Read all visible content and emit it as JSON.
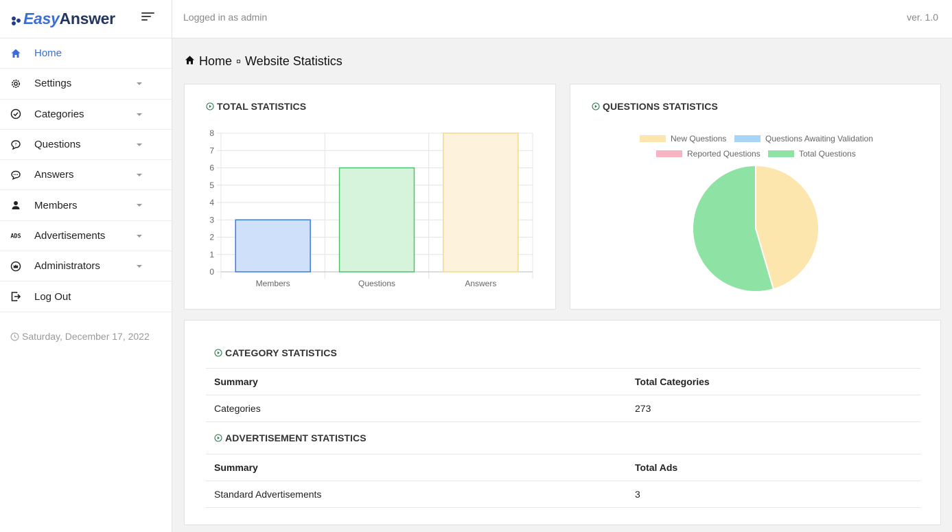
{
  "brand": {
    "part1": "Easy",
    "part2": "Answer"
  },
  "topbar": {
    "user_text": "Logged in as admin",
    "version": "ver. 1.0"
  },
  "sidebar": {
    "items": [
      {
        "label": "Home",
        "icon": "home-icon",
        "active": true
      },
      {
        "label": "Settings",
        "icon": "gear-icon"
      },
      {
        "label": "Categories",
        "icon": "check-circle-icon"
      },
      {
        "label": "Questions",
        "icon": "question-bubble-icon"
      },
      {
        "label": "Answers",
        "icon": "chat-bubble-icon"
      },
      {
        "label": "Members",
        "icon": "person-icon"
      },
      {
        "label": "Advertisements",
        "icon": "ads-icon"
      },
      {
        "label": "Administrators",
        "icon": "admin-badge-icon"
      },
      {
        "label": "Log Out",
        "icon": "logout-icon"
      }
    ],
    "date": "Saturday, December 17, 2022"
  },
  "breadcrumb": {
    "home": "Home",
    "current": "Website Statistics"
  },
  "total_stats": {
    "title": "TOTAL STATISTICS"
  },
  "questions_stats": {
    "title": "QUESTIONS STATISTICS"
  },
  "category_stats": {
    "title": "CATEGORY STATISTICS",
    "headers": [
      "Summary",
      "Total Categories"
    ],
    "rows": [
      [
        "Categories",
        "273"
      ]
    ]
  },
  "ad_stats": {
    "title": "ADVERTISEMENT STATISTICS",
    "headers": [
      "Summary",
      "Total Ads"
    ],
    "rows": [
      [
        "Standard Advertisements",
        "3"
      ]
    ]
  },
  "colors": {
    "accent": "#3a6fd8",
    "members_fill": "#cfe0fb",
    "members_stroke": "#3a7bd5",
    "questions_fill": "#d6f3dc",
    "questions_stroke": "#4cc26a",
    "answers_fill": "#fdf3dd",
    "answers_stroke": "#f5d88a",
    "pie_new": "#fde6ad",
    "pie_awaiting": "#a8d4f5",
    "pie_reported": "#f7b3c2",
    "pie_total": "#8ee3a4"
  },
  "chart_data": [
    {
      "type": "bar",
      "categories": [
        "Members",
        "Questions",
        "Answers"
      ],
      "values": [
        3,
        6,
        8
      ],
      "ylim": [
        0,
        8
      ],
      "yticks": [
        0,
        1,
        2,
        3,
        4,
        5,
        6,
        7,
        8
      ],
      "grid": true
    },
    {
      "type": "pie",
      "labels": [
        "New Questions",
        "Questions Awaiting Validation",
        "Reported Questions",
        "Total Questions"
      ],
      "values": [
        5,
        0,
        0,
        6
      ],
      "legend": "top"
    }
  ]
}
